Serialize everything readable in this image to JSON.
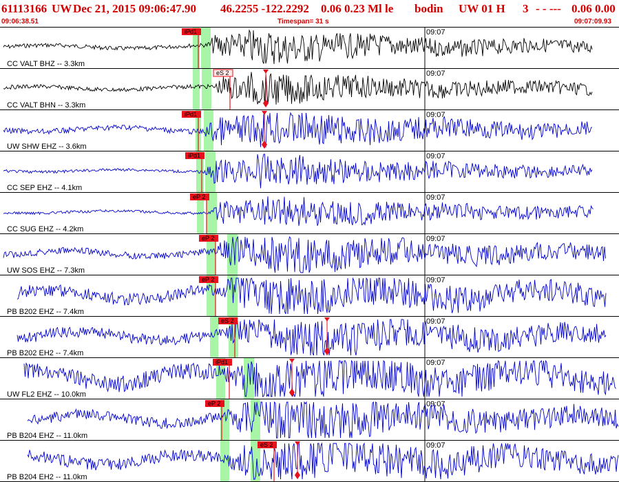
{
  "header": {
    "event_id": "61113166",
    "network": "UW",
    "date_time": "Dec 21, 2015 09:06:47.90",
    "location": "46.2255 -122.2292",
    "values": "0.06 0.23 Ml le",
    "analyst": "bodin",
    "version": "UW 01 H",
    "quality": "3",
    "dashes": "- - ---",
    "magnitude": "0.06 0.00"
  },
  "subheader": {
    "start_time": "09:06:38.51",
    "timespan": "Timespan=  31 s",
    "end_time": "09:07:09.93"
  },
  "colors": {
    "accent": "#d40000",
    "trace_black": "#000000",
    "trace_blue": "#0000cc",
    "pick_box": "#e8101a",
    "window_green": "#a8f5a8"
  },
  "tick_label": "09:07",
  "channels": [
    {
      "label": "CC VALT BHZ -- 3.3km",
      "color": "black",
      "pick": "iPd1",
      "pick_type": "box",
      "pick_fixed": false
    },
    {
      "label": "CC VALT BHN -- 3.3km",
      "color": "black",
      "pick": "eS 2",
      "pick_type": "outline",
      "pick_fixed": true
    },
    {
      "label": "UW SHW EHZ -- 3.6km",
      "color": "blue",
      "pick": "iPd1",
      "pick_type": "box",
      "pick_fixed": true
    },
    {
      "label": "CC SEP EHZ -- 4.1km",
      "color": "blue",
      "pick": "iPd1",
      "pick_type": "box",
      "pick_fixed": false
    },
    {
      "label": "CC SUG EHZ -- 4.2km",
      "color": "blue",
      "pick": "eP 2",
      "pick_type": "box",
      "pick_fixed": false
    },
    {
      "label": "UW SOS EHZ -- 7.3km",
      "color": "blue",
      "pick": "eP 2",
      "pick_type": "box",
      "pick_fixed": false
    },
    {
      "label": "PB B202 EHZ -- 7.4km",
      "color": "blue",
      "pick": "eP 2",
      "pick_type": "box",
      "pick_fixed": false
    },
    {
      "label": "PB B202 EH2 -- 7.4km",
      "color": "blue",
      "pick": "eS 2",
      "pick_type": "box",
      "pick_fixed": true
    },
    {
      "label": "UW FL2 EHZ -- 10.0km",
      "color": "blue",
      "pick": "iPd1",
      "pick_type": "box",
      "pick_fixed": true
    },
    {
      "label": "PB B204 EHZ -- 11.0km",
      "color": "blue",
      "pick": "eP 2",
      "pick_type": "box",
      "pick_fixed": false
    },
    {
      "label": "PB B204 EH2 -- 11.0km",
      "color": "blue",
      "pick": "eS 2",
      "pick_type": "box",
      "pick_fixed": true
    }
  ]
}
